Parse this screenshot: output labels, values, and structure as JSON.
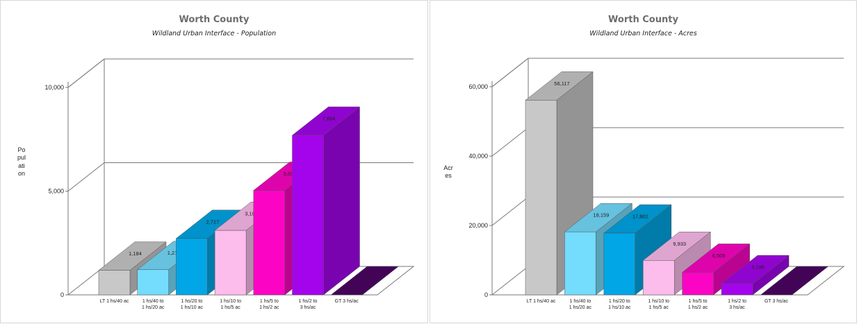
{
  "chart_data": [
    {
      "type": "bar",
      "title": "Worth County",
      "subtitle": "Wildland Urban Interface - Population",
      "xlabel": "",
      "ylabel": "Population",
      "ylim": [
        0,
        10000
      ],
      "yticks": [
        0,
        5000,
        10000
      ],
      "ytick_labels": [
        "0",
        "5,000",
        "10,000"
      ],
      "grid": true,
      "categories": [
        "LT 1 hs/40 ac",
        "1 hs/40 to 1 hs/20 ac",
        "1 hs/20 to 1 hs/10 ac",
        "1 hs/10 to 1 hs/5 ac",
        "1 hs/5 to 1 hs/2 ac",
        "1 hs/2 to 3 hs/ac",
        "GT 3 hs/ac"
      ],
      "values": [
        1184,
        1213,
        2717,
        3107,
        5035,
        7694,
        0
      ],
      "value_labels": [
        "1,184",
        "1,213",
        "2,717",
        "3,107",
        "5,035",
        "7,694",
        "0"
      ],
      "colors": [
        "#c8c8c8",
        "#74dcfc",
        "#00a6e6",
        "#fcbcec",
        "#fc04c4",
        "#a404ec",
        "#4c0464"
      ]
    },
    {
      "type": "bar",
      "title": "Worth County",
      "subtitle": "Wildland Urban Interface - Acres",
      "xlabel": "",
      "ylabel": "Acres",
      "ylim": [
        0,
        60000
      ],
      "yticks": [
        0,
        20000,
        40000,
        60000
      ],
      "ytick_labels": [
        "0",
        "20,000",
        "40,000",
        "60,000"
      ],
      "grid": true,
      "categories": [
        "LT 1 hs/40 ac",
        "1 hs/40 to 1 hs/20 ac",
        "1 hs/20 to 1 hs/10 ac",
        "1 hs/10 to 1 hs/5 ac",
        "1 hs/5 to 1 hs/2 ac",
        "1 hs/2 to 3 hs/ac",
        "GT 3 hs/ac"
      ],
      "values": [
        56117,
        18159,
        17802,
        9933,
        6509,
        3196,
        0
      ],
      "value_labels": [
        "56,117",
        "18,159",
        "17,802",
        "9,933",
        "6,509",
        "3,196",
        "0"
      ],
      "colors": [
        "#c8c8c8",
        "#74dcfc",
        "#00a6e6",
        "#fcbcec",
        "#fc04c4",
        "#a404ec",
        "#4c0464"
      ]
    }
  ]
}
